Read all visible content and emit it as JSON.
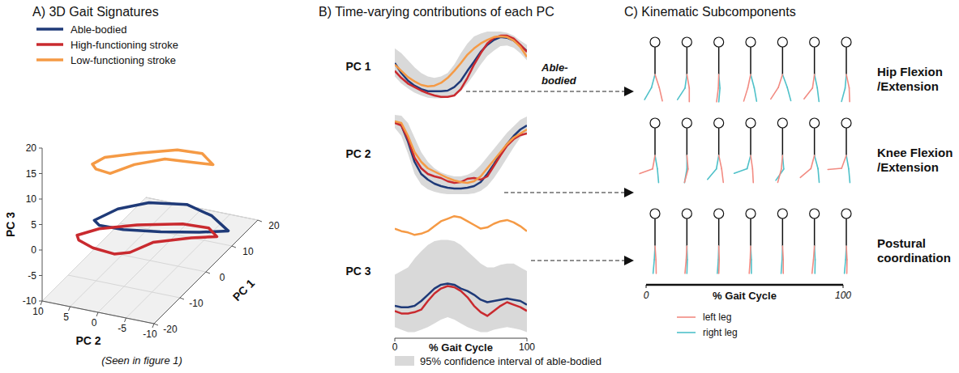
{
  "chart_data": [
    {
      "type": "line3d",
      "title": "A) 3D Gait Signatures",
      "caption": "(Seen in figure 1)",
      "x_label": "PC 1",
      "y_label": "PC 2",
      "z_label": "PC 3",
      "xlim": [
        -20,
        20
      ],
      "xticks": [
        -20,
        -10,
        0,
        10,
        20
      ],
      "ylim": [
        -10,
        10
      ],
      "yticks": [
        -10,
        -5,
        0,
        5,
        10
      ],
      "zlim": [
        -10,
        20
      ],
      "zticks": [
        -10,
        -5,
        0,
        5,
        10,
        15,
        20
      ],
      "grid": true,
      "legend": "top-left",
      "series": [
        {
          "name": "Able-bodied",
          "color": "#1f3a78",
          "x": [
            -3.8,
            1.4,
            5.4,
            7.3,
            5.3,
            9.7,
            2.5,
            -3.2,
            -4.9,
            -5.1,
            -3.8
          ],
          "y": [
            8.2,
            6.4,
            2.7,
            -3.2,
            -8.6,
            -9.5,
            -7.7,
            -3.4,
            2.5,
            6.7,
            8.2
          ],
          "z": [
            -2,
            -2,
            -2,
            -2,
            -2,
            -7,
            -4,
            -2,
            -2,
            -2,
            -2
          ]
        },
        {
          "name": "High-functioning stroke",
          "color": "#c92a2f",
          "x": [
            -13,
            -9.5,
            -5.8,
            -2.5,
            2.8,
            5.5,
            0.1,
            -3.8,
            -6.9,
            -8.4,
            -11.1,
            -12.8,
            -13
          ],
          "y": [
            7,
            4.7,
            -0.4,
            -7,
            -9.2,
            -9.4,
            -7.3,
            -2.3,
            0.4,
            2.5,
            5.1,
            6.8,
            7
          ],
          "z": [
            0,
            0,
            0,
            0,
            -3,
            -6,
            -4,
            -4,
            -5,
            -5,
            -3,
            -1,
            0
          ]
        },
        {
          "name": "Low-functioning stroke",
          "color": "#f59a45",
          "x": [
            -17,
            -14,
            -10.4,
            -6.9,
            0.1,
            3.8,
            -3.3,
            -10.6,
            -14.4,
            -18.8,
            -18.3,
            -17
          ],
          "y": [
            2.4,
            1.6,
            -2.9,
            -8.1,
            -9.3,
            -9.5,
            -9.3,
            -7.6,
            -3.9,
            -1.6,
            1.2,
            2.4
          ],
          "z": [
            17,
            17,
            17,
            17,
            13,
            9,
            13,
            17,
            17,
            17,
            17,
            17
          ]
        }
      ]
    },
    {
      "type": "line",
      "title": "B) Time-varying contributions of each PC",
      "x_label": "% Gait Cycle",
      "xlim": [
        0,
        100
      ],
      "xticks": [
        0,
        100
      ],
      "tick_labels": "x",
      "annotation": "Able-bodied",
      "band": {
        "name": "95% confidence interval of able-bodied",
        "color": "#d9d9d9"
      },
      "x": [
        0,
        5,
        10,
        15,
        20,
        25,
        30,
        35,
        40,
        45,
        50,
        55,
        60,
        65,
        70,
        75,
        80,
        85,
        90,
        95,
        100
      ],
      "subplots": [
        {
          "label": "PC 1",
          "ylim": [
            0,
            100
          ],
          "band_upper": [
            75,
            68,
            58,
            48,
            40,
            35,
            33,
            35,
            40,
            52,
            68,
            82,
            92,
            96,
            99,
            99,
            99,
            97,
            93,
            86,
            80
          ],
          "band_lower": [
            35,
            25,
            18,
            12,
            8,
            5,
            4,
            4,
            5,
            8,
            14,
            25,
            38,
            52,
            64,
            72,
            78,
            79,
            76,
            68,
            58
          ],
          "series": [
            {
              "color": "#1f3a78",
              "values": [
                54,
                40,
                29,
                22,
                17,
                14,
                14,
                14,
                15,
                20,
                29,
                43,
                56,
                70,
                80,
                87,
                91,
                90,
                86,
                79,
                71
              ]
            },
            {
              "color": "#c92a2f",
              "values": [
                43,
                33,
                25,
                20,
                15,
                11,
                8,
                6,
                6,
                8,
                17,
                33,
                52,
                68,
                82,
                90,
                93,
                93,
                89,
                80,
                70
              ]
            },
            {
              "color": "#f59a45",
              "values": [
                52,
                43,
                34,
                28,
                23,
                21,
                22,
                26,
                33,
                43,
                54,
                66,
                75,
                82,
                87,
                91,
                92,
                91,
                86,
                77,
                63
              ]
            }
          ]
        },
        {
          "label": "PC 2",
          "ylim": [
            0,
            100
          ],
          "band_upper": [
            98,
            97,
            88,
            70,
            52,
            40,
            32,
            27,
            24,
            22,
            22,
            24,
            28,
            36,
            46,
            56,
            66,
            76,
            84,
            92,
            96
          ],
          "band_lower": [
            82,
            72,
            50,
            25,
            12,
            6,
            3,
            1,
            0,
            0,
            0,
            0,
            1,
            4,
            10,
            20,
            32,
            45,
            58,
            70,
            76
          ],
          "series": [
            {
              "color": "#1f3a78",
              "values": [
                90,
                85,
                65,
                40,
                25,
                18,
                13,
                10,
                8,
                7,
                7,
                8,
                10,
                15,
                25,
                37,
                50,
                62,
                72,
                80,
                85
              ]
            },
            {
              "color": "#c92a2f",
              "values": [
                88,
                85,
                68,
                45,
                32,
                25,
                22,
                20,
                16,
                14,
                15,
                19,
                20,
                18,
                22,
                35,
                48,
                60,
                68,
                73,
                75
              ]
            },
            {
              "color": "#f59a45",
              "values": [
                90,
                88,
                72,
                52,
                40,
                32,
                28,
                24,
                20,
                17,
                15,
                14,
                16,
                22,
                32,
                42,
                52,
                62,
                70,
                75,
                80
              ]
            }
          ]
        },
        {
          "label": "PC 3",
          "ylim": [
            0,
            100
          ],
          "band_upper": [
            47,
            50,
            53,
            60,
            66,
            71,
            74,
            75,
            75,
            74,
            71,
            66,
            61,
            56,
            53,
            53,
            55,
            56,
            56,
            53,
            50
          ],
          "band_lower": [
            5,
            3,
            1,
            1,
            3,
            5,
            8,
            11,
            13,
            11,
            8,
            5,
            3,
            1,
            1,
            3,
            4,
            5,
            4,
            3,
            1
          ],
          "series": [
            {
              "color": "#1f3a78",
              "values": [
                22,
                21,
                21,
                22,
                26,
                31,
                36,
                39,
                40,
                39,
                36,
                34,
                31,
                27,
                25,
                26,
                27,
                28,
                27,
                26,
                23
              ]
            },
            {
              "color": "#c92a2f",
              "values": [
                18,
                16,
                16,
                17,
                19,
                26,
                32,
                36,
                38,
                37,
                34,
                29,
                22,
                17,
                14,
                18,
                22,
                25,
                23,
                21,
                18
              ]
            },
            {
              "color": "#f59a45",
              "values": [
                84,
                82,
                81,
                79,
                80,
                82,
                86,
                90,
                92,
                94,
                93,
                90,
                87,
                84,
                85,
                88,
                90,
                91,
                89,
                86,
                82
              ]
            }
          ]
        }
      ]
    },
    {
      "type": "diagram",
      "title": "C) Kinematic Subcomponents",
      "x_label": "% Gait Cycle",
      "xlim": [
        0,
        100
      ],
      "xticks": [
        0,
        100
      ],
      "series": [
        {
          "name": "left leg",
          "color": "#f28b82"
        },
        {
          "name": "right leg",
          "color": "#4fc1c9"
        }
      ],
      "rows": [
        {
          "label": "Hip Flexion /Extension",
          "left_hip": [
            18,
            10,
            -2,
            -12,
            -18,
            -8,
            12
          ],
          "left_knee": [
            5,
            10,
            5,
            5,
            15,
            30,
            10
          ],
          "right_hip": [
            -15,
            -8,
            5,
            15,
            20,
            12,
            -5
          ],
          "right_knee": [
            15,
            25,
            10,
            5,
            5,
            5,
            10
          ]
        },
        {
          "label": "Knee Flexion /Extension",
          "left_hip": [
            -10,
            5,
            12,
            8,
            -5,
            -15,
            -20
          ],
          "left_knee": [
            60,
            20,
            5,
            5,
            10,
            35,
            65
          ],
          "right_hip": [
            10,
            0,
            -10,
            -15,
            5,
            15,
            10
          ],
          "right_knee": [
            5,
            10,
            30,
            55,
            40,
            10,
            5
          ]
        },
        {
          "label": "Postural coordination",
          "left_hip": [
            4,
            -3,
            2,
            -2,
            3,
            -4,
            3
          ],
          "left_knee": [
            3,
            2,
            4,
            2,
            3,
            2,
            4
          ],
          "right_hip": [
            -3,
            2,
            -2,
            3,
            -2,
            3,
            -3
          ],
          "right_knee": [
            2,
            4,
            2,
            3,
            2,
            4,
            2
          ]
        }
      ]
    }
  ]
}
